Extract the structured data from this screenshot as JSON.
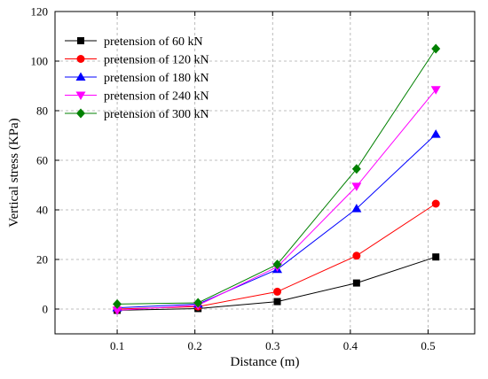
{
  "chart_data": {
    "type": "line",
    "title": "",
    "xlabel": "Distance (m)",
    "ylabel": "Vertical stress (KPa)",
    "xlim": [
      0.02,
      0.56
    ],
    "ylim": [
      -10,
      120
    ],
    "x_ticks": [
      0.1,
      0.2,
      0.3,
      0.4,
      0.5
    ],
    "x_tick_labels": [
      "0.1",
      "0.2",
      "0.3",
      "0.4",
      "0.5"
    ],
    "y_ticks": [
      0,
      20,
      40,
      60,
      80,
      100,
      120
    ],
    "y_tick_labels": [
      "0",
      "20",
      "40",
      "60",
      "80",
      "100",
      "120"
    ],
    "grid": true,
    "legend_position": "top-left",
    "x": [
      0.1,
      0.204,
      0.306,
      0.408,
      0.51
    ],
    "series": [
      {
        "name": "pretension of 60 kN",
        "color": "#000000",
        "marker": "square",
        "values": [
          -0.5,
          0.2,
          3.0,
          10.5,
          21.0
        ]
      },
      {
        "name": "pretension of 120 kN",
        "color": "#ff0000",
        "marker": "circle",
        "values": [
          0.0,
          1.0,
          7.0,
          21.5,
          42.5
        ]
      },
      {
        "name": "pretension of 180 kN",
        "color": "#0000ff",
        "marker": "triangle-up",
        "values": [
          0.5,
          2.0,
          16.0,
          40.5,
          70.5
        ]
      },
      {
        "name": "pretension of 240 kN",
        "color": "#ff00ff",
        "marker": "triangle-down",
        "values": [
          -0.5,
          1.5,
          17.0,
          49.5,
          88.5
        ]
      },
      {
        "name": "pretension of 300 kN",
        "color": "#008000",
        "marker": "diamond",
        "values": [
          2.0,
          2.5,
          18.0,
          56.5,
          105.0
        ]
      }
    ]
  }
}
